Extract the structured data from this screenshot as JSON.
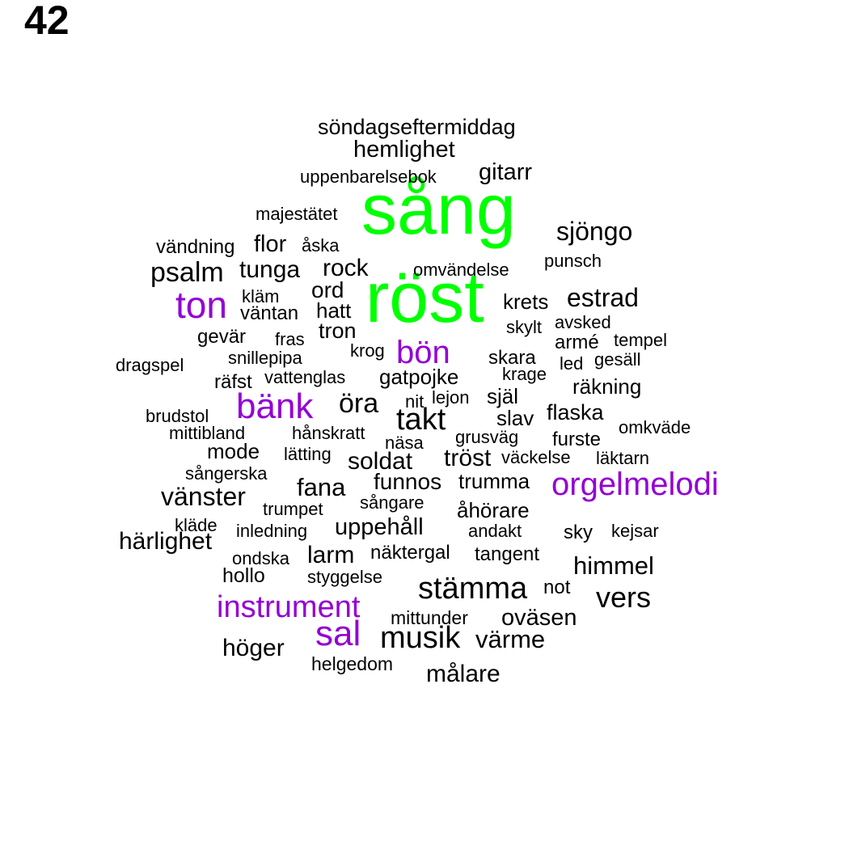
{
  "page_number": "42",
  "colors": {
    "top": "#00ff00",
    "highlight": "#9400d3",
    "default": "#000000"
  },
  "words": [
    {
      "text": "sång",
      "tier": "top"
    },
    {
      "text": "röst",
      "tier": "top"
    },
    {
      "text": "ton",
      "tier": "highlight"
    },
    {
      "text": "bön",
      "tier": "highlight"
    },
    {
      "text": "bänk",
      "tier": "highlight"
    },
    {
      "text": "orgelmelodi",
      "tier": "highlight"
    },
    {
      "text": "instrument",
      "tier": "highlight"
    },
    {
      "text": "sal",
      "tier": "highlight"
    },
    {
      "text": "söndagseftermiddag",
      "tier": "default"
    },
    {
      "text": "hemlighet",
      "tier": "default"
    },
    {
      "text": "uppenbarelsebok",
      "tier": "default"
    },
    {
      "text": "gitarr",
      "tier": "default"
    },
    {
      "text": "majestätet",
      "tier": "default"
    },
    {
      "text": "sjöngo",
      "tier": "default"
    },
    {
      "text": "vändning",
      "tier": "default"
    },
    {
      "text": "flor",
      "tier": "default"
    },
    {
      "text": "åska",
      "tier": "default"
    },
    {
      "text": "punsch",
      "tier": "default"
    },
    {
      "text": "psalm",
      "tier": "default"
    },
    {
      "text": "tunga",
      "tier": "default"
    },
    {
      "text": "rock",
      "tier": "default"
    },
    {
      "text": "omvändelse",
      "tier": "default"
    },
    {
      "text": "kläm",
      "tier": "default"
    },
    {
      "text": "ord",
      "tier": "default"
    },
    {
      "text": "krets",
      "tier": "default"
    },
    {
      "text": "estrad",
      "tier": "default"
    },
    {
      "text": "väntan",
      "tier": "default"
    },
    {
      "text": "hatt",
      "tier": "default"
    },
    {
      "text": "skylt",
      "tier": "default"
    },
    {
      "text": "avsked",
      "tier": "default"
    },
    {
      "text": "tron",
      "tier": "default"
    },
    {
      "text": "gevär",
      "tier": "default"
    },
    {
      "text": "fras",
      "tier": "default"
    },
    {
      "text": "armé",
      "tier": "default"
    },
    {
      "text": "tempel",
      "tier": "default"
    },
    {
      "text": "krog",
      "tier": "default"
    },
    {
      "text": "snillepipa",
      "tier": "default"
    },
    {
      "text": "skara",
      "tier": "default"
    },
    {
      "text": "led",
      "tier": "default"
    },
    {
      "text": "gesäll",
      "tier": "default"
    },
    {
      "text": "dragspel",
      "tier": "default"
    },
    {
      "text": "krage",
      "tier": "default"
    },
    {
      "text": "räfst",
      "tier": "default"
    },
    {
      "text": "vattenglas",
      "tier": "default"
    },
    {
      "text": "gatpojke",
      "tier": "default"
    },
    {
      "text": "räkning",
      "tier": "default"
    },
    {
      "text": "öra",
      "tier": "default"
    },
    {
      "text": "nit",
      "tier": "default"
    },
    {
      "text": "lejon",
      "tier": "default"
    },
    {
      "text": "själ",
      "tier": "default"
    },
    {
      "text": "flaska",
      "tier": "default"
    },
    {
      "text": "brudstol",
      "tier": "default"
    },
    {
      "text": "takt",
      "tier": "default"
    },
    {
      "text": "slav",
      "tier": "default"
    },
    {
      "text": "omkväde",
      "tier": "default"
    },
    {
      "text": "mittibland",
      "tier": "default"
    },
    {
      "text": "hånskratt",
      "tier": "default"
    },
    {
      "text": "grusväg",
      "tier": "default"
    },
    {
      "text": "furste",
      "tier": "default"
    },
    {
      "text": "näsa",
      "tier": "default"
    },
    {
      "text": "mode",
      "tier": "default"
    },
    {
      "text": "lätting",
      "tier": "default"
    },
    {
      "text": "tröst",
      "tier": "default"
    },
    {
      "text": "väckelse",
      "tier": "default"
    },
    {
      "text": "läktarn",
      "tier": "default"
    },
    {
      "text": "soldat",
      "tier": "default"
    },
    {
      "text": "sångerska",
      "tier": "default"
    },
    {
      "text": "funnos",
      "tier": "default"
    },
    {
      "text": "trumma",
      "tier": "default"
    },
    {
      "text": "fana",
      "tier": "default"
    },
    {
      "text": "vänster",
      "tier": "default"
    },
    {
      "text": "trumpet",
      "tier": "default"
    },
    {
      "text": "sångare",
      "tier": "default"
    },
    {
      "text": "åhörare",
      "tier": "default"
    },
    {
      "text": "kläde",
      "tier": "default"
    },
    {
      "text": "inledning",
      "tier": "default"
    },
    {
      "text": "uppehåll",
      "tier": "default"
    },
    {
      "text": "andakt",
      "tier": "default"
    },
    {
      "text": "sky",
      "tier": "default"
    },
    {
      "text": "kejsar",
      "tier": "default"
    },
    {
      "text": "härlighet",
      "tier": "default"
    },
    {
      "text": "ondska",
      "tier": "default"
    },
    {
      "text": "larm",
      "tier": "default"
    },
    {
      "text": "näktergal",
      "tier": "default"
    },
    {
      "text": "tangent",
      "tier": "default"
    },
    {
      "text": "hollo",
      "tier": "default"
    },
    {
      "text": "styggelse",
      "tier": "default"
    },
    {
      "text": "himmel",
      "tier": "default"
    },
    {
      "text": "stämma",
      "tier": "default"
    },
    {
      "text": "not",
      "tier": "default"
    },
    {
      "text": "vers",
      "tier": "default"
    },
    {
      "text": "mittunder",
      "tier": "default"
    },
    {
      "text": "oväsen",
      "tier": "default"
    },
    {
      "text": "höger",
      "tier": "default"
    },
    {
      "text": "musik",
      "tier": "default"
    },
    {
      "text": "värme",
      "tier": "default"
    },
    {
      "text": "helgedom",
      "tier": "default"
    },
    {
      "text": "målare",
      "tier": "default"
    }
  ]
}
